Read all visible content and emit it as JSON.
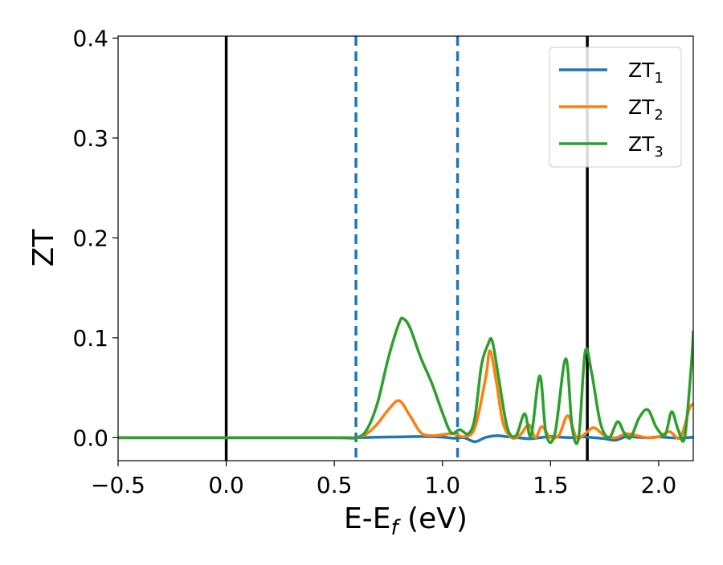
{
  "chart_data": {
    "type": "line",
    "title": "",
    "xlabel": "E-E",
    "xlabel_subscript": "f",
    "xlabel_unit": " (eV)",
    "ylabel": "ZT",
    "xlim": [
      -0.5,
      2.16
    ],
    "ylim": [
      -0.023,
      0.402
    ],
    "xticks": [
      -0.5,
      0.0,
      0.5,
      1.0,
      1.5,
      2.0
    ],
    "xtick_labels": [
      "−0.5",
      "0.0",
      "0.5",
      "1.0",
      "1.5",
      "2.0"
    ],
    "yticks": [
      0.0,
      0.1,
      0.2,
      0.3,
      0.4
    ],
    "ytick_labels": [
      "0.0",
      "0.1",
      "0.2",
      "0.3",
      "0.4"
    ],
    "grid": false,
    "legend_placement": "top-right",
    "vertical_lines": [
      {
        "x": 0.0,
        "style": "solid",
        "color": "#000000"
      },
      {
        "x": 1.67,
        "style": "solid",
        "color": "#000000"
      },
      {
        "x": 0.6,
        "style": "dashed",
        "color": "#1f77b4"
      },
      {
        "x": 1.07,
        "style": "dashed",
        "color": "#1f77b4"
      }
    ],
    "series": [
      {
        "name": "ZT",
        "name_subscript": "1",
        "color": "#1f77b4",
        "x": [
          -0.5,
          0.0,
          0.5,
          0.6,
          0.7,
          0.8,
          0.9,
          1.0,
          1.05,
          1.1,
          1.15,
          1.2,
          1.25,
          1.3,
          1.35,
          1.4,
          1.45,
          1.5,
          1.55,
          1.6,
          1.65,
          1.7,
          1.75,
          1.8,
          1.85,
          1.9,
          1.95,
          2.0,
          2.05,
          2.1,
          2.16
        ],
        "y": [
          0.0,
          0.0,
          0.0,
          0.0,
          0.0005,
          0.0008,
          0.0012,
          0.0006,
          -0.0005,
          0.0,
          -0.004,
          0.0003,
          0.002,
          0.001,
          0.0,
          -0.001,
          0.0,
          0.0012,
          0.0005,
          0.0,
          0.0008,
          0.0,
          -0.001,
          -0.0025,
          0.001,
          0.0005,
          0.0,
          0.0008,
          0.0,
          -0.0003,
          0.0005
        ]
      },
      {
        "name": "ZT",
        "name_subscript": "2",
        "color": "#ff7f0e",
        "x": [
          -0.5,
          0.0,
          0.5,
          0.6,
          0.65,
          0.7,
          0.75,
          0.8,
          0.85,
          0.9,
          0.95,
          1.0,
          1.05,
          1.1,
          1.15,
          1.2,
          1.22,
          1.25,
          1.28,
          1.32,
          1.36,
          1.4,
          1.43,
          1.46,
          1.5,
          1.54,
          1.58,
          1.62,
          1.66,
          1.7,
          1.75,
          1.8,
          1.85,
          1.9,
          1.95,
          2.0,
          2.05,
          2.1,
          2.14,
          2.16
        ],
        "y": [
          0.0,
          0.0,
          0.0,
          0.0,
          0.004,
          0.014,
          0.028,
          0.037,
          0.022,
          0.005,
          0.002,
          0.003,
          0.004,
          0.001,
          0.01,
          0.06,
          0.087,
          0.055,
          0.015,
          0.0,
          0.003,
          0.013,
          0.0,
          0.011,
          0.0,
          0.003,
          0.022,
          0.0,
          0.004,
          0.01,
          0.002,
          0.0,
          0.004,
          0.002,
          0.0,
          0.001,
          0.006,
          0.0,
          0.028,
          0.034
        ]
      },
      {
        "name": "ZT",
        "name_subscript": "3",
        "color": "#2ca02c",
        "x": [
          -0.5,
          0.0,
          0.5,
          0.6,
          0.65,
          0.7,
          0.75,
          0.8,
          0.82,
          0.85,
          0.9,
          0.95,
          1.0,
          1.04,
          1.08,
          1.12,
          1.15,
          1.18,
          1.21,
          1.23,
          1.26,
          1.3,
          1.34,
          1.38,
          1.41,
          1.45,
          1.48,
          1.52,
          1.57,
          1.6,
          1.63,
          1.66,
          1.69,
          1.73,
          1.77,
          1.81,
          1.84,
          1.87,
          1.91,
          1.95,
          1.99,
          2.03,
          2.06,
          2.09,
          2.12,
          2.15,
          2.16
        ],
        "y": [
          0.0,
          0.0,
          0.0,
          0.0,
          0.008,
          0.035,
          0.08,
          0.115,
          0.119,
          0.11,
          0.08,
          0.055,
          0.025,
          0.005,
          0.008,
          0.004,
          0.02,
          0.072,
          0.093,
          0.097,
          0.06,
          0.01,
          0.002,
          0.024,
          0.002,
          0.062,
          0.003,
          0.004,
          0.079,
          0.01,
          0.0,
          0.086,
          0.065,
          0.015,
          0.0,
          0.016,
          0.005,
          0.0,
          0.02,
          0.028,
          0.01,
          0.003,
          0.026,
          0.008,
          0.0,
          0.07,
          0.106
        ]
      }
    ]
  }
}
